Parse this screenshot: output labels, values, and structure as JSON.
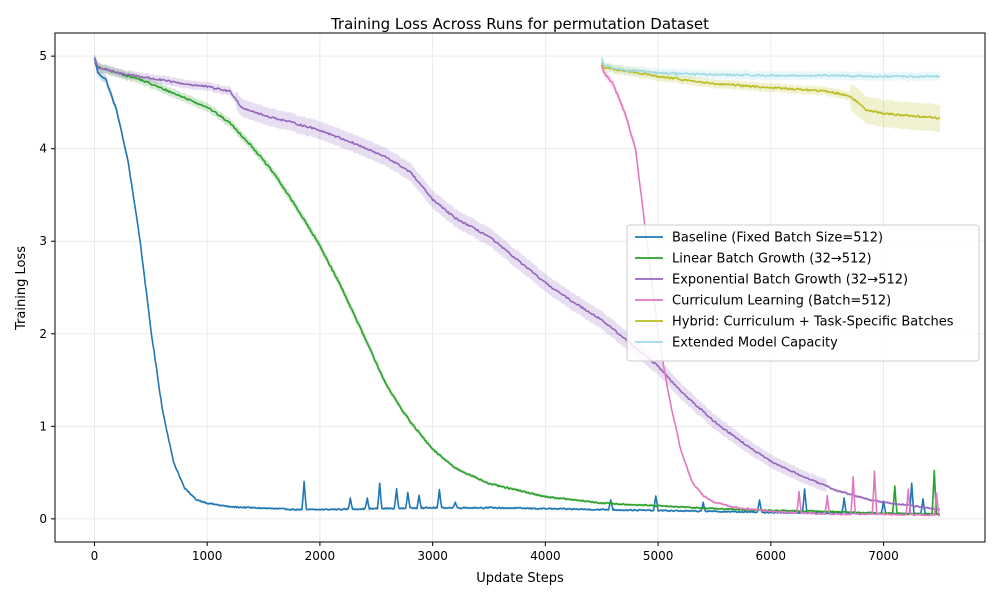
{
  "chart_data": {
    "type": "line",
    "title": "Training Loss Across Runs for permutation Dataset",
    "xlabel": "Update Steps",
    "ylabel": "Training Loss",
    "xlim": [
      -350,
      7900
    ],
    "ylim": [
      -0.25,
      5.25
    ],
    "xticks": [
      0,
      1000,
      2000,
      3000,
      4000,
      5000,
      6000,
      7000
    ],
    "yticks": [
      0,
      1,
      2,
      3,
      4,
      5
    ],
    "grid": true,
    "legend_position": "center-right",
    "series": [
      {
        "name": "Baseline (Fixed Batch Size=512)",
        "color": "#1f77b4",
        "x": [
          0,
          30,
          100,
          200,
          300,
          400,
          500,
          600,
          700,
          800,
          900,
          1000,
          1200,
          1400,
          1600,
          1800,
          2000,
          2500,
          3000,
          3500,
          4000,
          4500,
          5000,
          5500,
          6000,
          6500,
          7000,
          7500
        ],
        "y": [
          4.98,
          4.82,
          4.75,
          4.4,
          3.85,
          3.05,
          2.05,
          1.2,
          0.62,
          0.33,
          0.21,
          0.17,
          0.13,
          0.12,
          0.11,
          0.1,
          0.1,
          0.11,
          0.12,
          0.12,
          0.11,
          0.1,
          0.09,
          0.08,
          0.07,
          0.06,
          0.06,
          0.05
        ],
        "spikes": [
          [
            1860,
            0.4
          ],
          [
            2270,
            0.22
          ],
          [
            2420,
            0.22
          ],
          [
            2530,
            0.38
          ],
          [
            2680,
            0.32
          ],
          [
            2780,
            0.28
          ],
          [
            2880,
            0.26
          ],
          [
            3060,
            0.31
          ],
          [
            3200,
            0.18
          ],
          [
            4580,
            0.21
          ],
          [
            4980,
            0.25
          ],
          [
            5400,
            0.18
          ],
          [
            5900,
            0.2
          ],
          [
            6300,
            0.32
          ],
          [
            6650,
            0.22
          ],
          [
            7000,
            0.19
          ],
          [
            7250,
            0.38
          ],
          [
            7350,
            0.22
          ]
        ]
      },
      {
        "name": "Linear Batch Growth (32→512)",
        "color": "#2ca02c",
        "x": [
          0,
          30,
          200,
          400,
          600,
          800,
          1000,
          1200,
          1400,
          1600,
          1800,
          2000,
          2200,
          2400,
          2600,
          2800,
          3000,
          3200,
          3500,
          4000,
          4500,
          5000,
          5500,
          6000,
          6500,
          7000,
          7500
        ],
        "y": [
          4.98,
          4.88,
          4.82,
          4.75,
          4.65,
          4.55,
          4.45,
          4.28,
          4.02,
          3.72,
          3.35,
          2.95,
          2.48,
          1.95,
          1.42,
          1.05,
          0.75,
          0.55,
          0.38,
          0.24,
          0.17,
          0.14,
          0.11,
          0.09,
          0.08,
          0.06,
          0.05
        ],
        "spikes": [
          [
            7100,
            0.36
          ],
          [
            7450,
            0.52
          ]
        ]
      },
      {
        "name": "Exponential Batch Growth (32→512)",
        "color": "#9467bd",
        "x": [
          0,
          30,
          200,
          400,
          600,
          800,
          1000,
          1200,
          1250,
          1300,
          1500,
          1700,
          2000,
          2300,
          2600,
          2800,
          3000,
          3200,
          3500,
          3800,
          4000,
          4200,
          4500,
          4800,
          5000,
          5200,
          5500,
          5800,
          6000,
          6300,
          6600,
          6900,
          7200,
          7500
        ],
        "y": [
          4.98,
          4.88,
          4.82,
          4.78,
          4.74,
          4.7,
          4.67,
          4.62,
          4.55,
          4.45,
          4.36,
          4.3,
          4.2,
          4.06,
          3.9,
          3.75,
          3.45,
          3.25,
          3.05,
          2.75,
          2.55,
          2.38,
          2.15,
          1.85,
          1.65,
          1.38,
          1.05,
          0.78,
          0.62,
          0.45,
          0.3,
          0.2,
          0.15,
          0.1
        ],
        "spikes": []
      },
      {
        "name": "Curriculum Learning (Batch=512)",
        "color": "#e377c2",
        "x": [
          4500,
          4520,
          4600,
          4700,
          4800,
          4900,
          5000,
          5100,
          5200,
          5300,
          5400,
          5500,
          5700,
          6000,
          6300,
          6600,
          7000,
          7500
        ],
        "y": [
          4.9,
          4.82,
          4.7,
          4.4,
          4.0,
          3.0,
          2.0,
          1.3,
          0.75,
          0.4,
          0.25,
          0.18,
          0.12,
          0.08,
          0.06,
          0.05,
          0.05,
          0.04
        ],
        "spikes": [
          [
            6250,
            0.3
          ],
          [
            6500,
            0.25
          ],
          [
            6730,
            0.45
          ],
          [
            6920,
            0.52
          ],
          [
            7220,
            0.32
          ],
          [
            7470,
            0.28
          ]
        ]
      },
      {
        "name": "Hybrid: Curriculum + Task-Specific Batches",
        "color": "#bcbd22",
        "x": [
          4500,
          4520,
          4800,
          5000,
          5500,
          6000,
          6500,
          6700,
          6850,
          7000,
          7200,
          7500
        ],
        "y": [
          4.93,
          4.88,
          4.82,
          4.78,
          4.7,
          4.66,
          4.62,
          4.57,
          4.42,
          4.38,
          4.36,
          4.33
        ],
        "spikes": []
      },
      {
        "name": "Extended Model Capacity",
        "color": "#9edae5",
        "x": [
          4500,
          4520,
          4700,
          5000,
          5500,
          6000,
          6500,
          7000,
          7500
        ],
        "y": [
          4.98,
          4.9,
          4.85,
          4.82,
          4.8,
          4.79,
          4.79,
          4.78,
          4.78
        ],
        "spikes": []
      }
    ]
  }
}
